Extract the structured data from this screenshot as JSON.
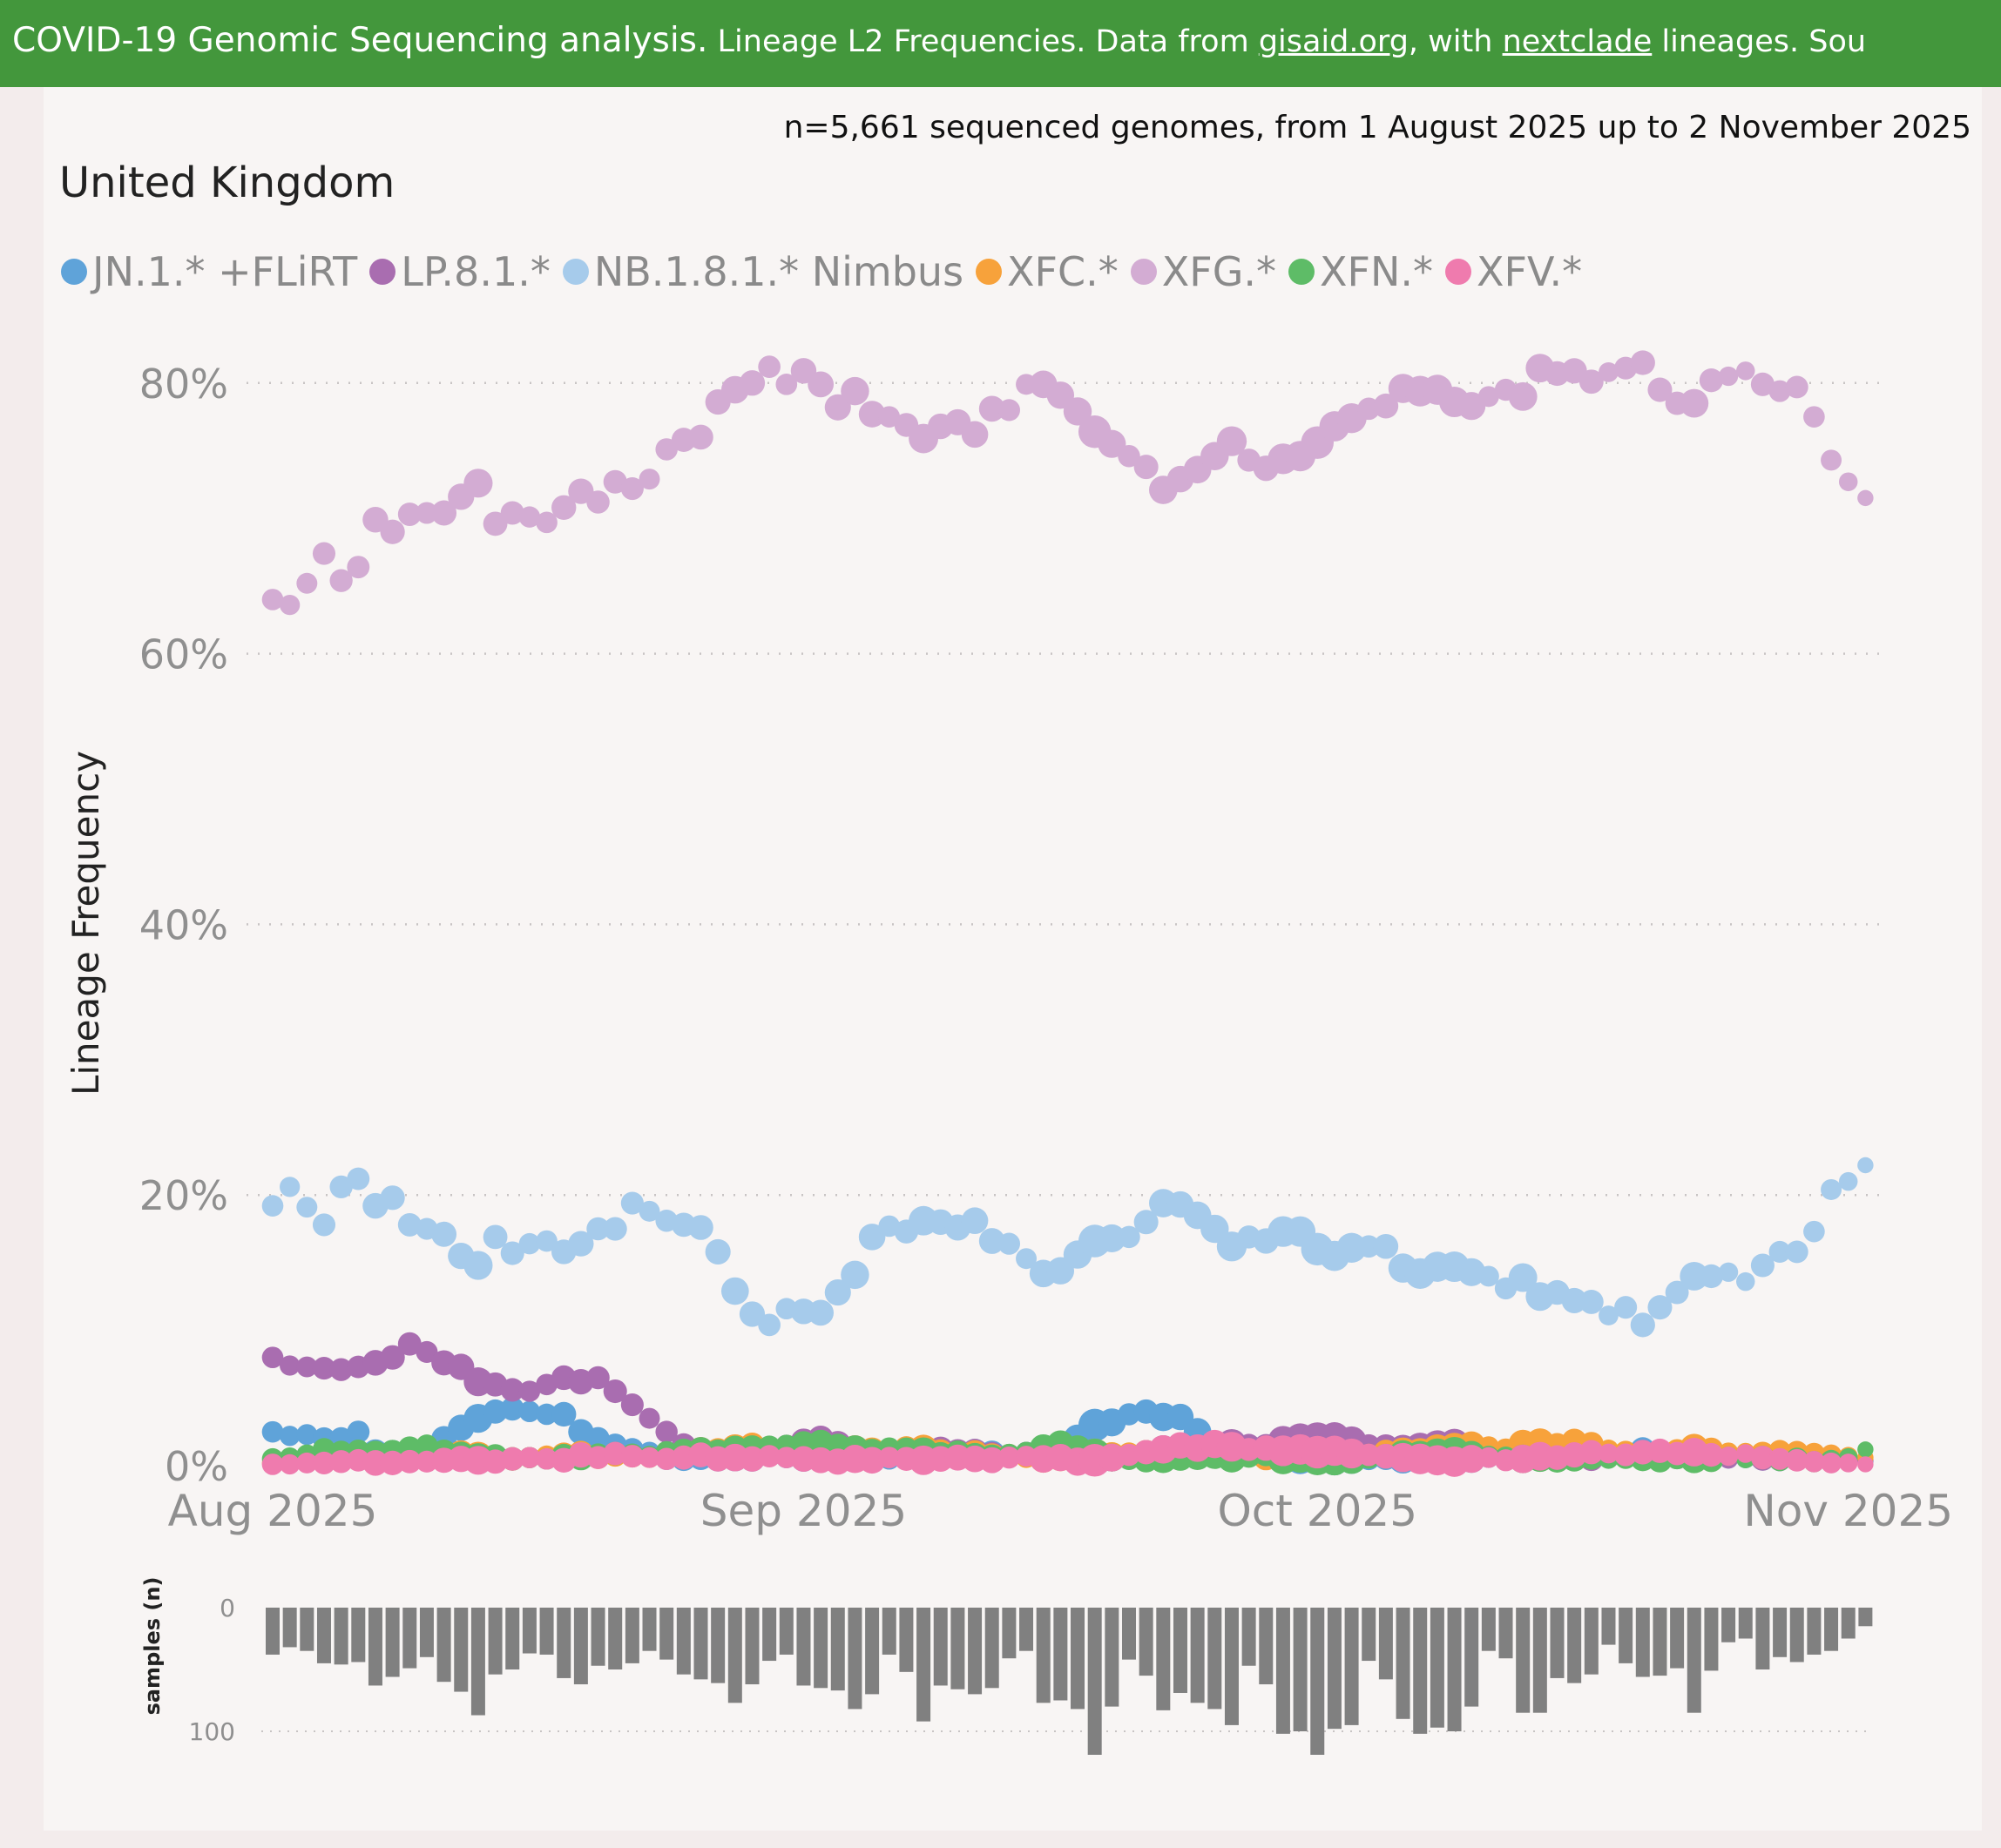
{
  "header": {
    "title": "COVID-19 Genomic Sequencing analysis.",
    "sub_a": " Lineage L2 Frequencies. Data from ",
    "link_gisaid": "gisaid.org",
    "sub_b": ", with ",
    "link_nextclade": "nextclade",
    "sub_c": " lineages. Sou"
  },
  "summary": "n=5,661 sequenced genomes, from 1 August 2025 up to 2 November 2025",
  "country": "United Kingdom",
  "chart_data": [
    {
      "type": "scatter",
      "title": "United Kingdom",
      "ylabel": "Lineage Frequency",
      "xlabel": "",
      "x_start": "2025-08-01",
      "x_end": "2025-11-02",
      "ylim": [
        0,
        80
      ],
      "yticks": [
        {
          "v": 0,
          "label": "0%"
        },
        {
          "v": 20,
          "label": "20%"
        },
        {
          "v": 40,
          "label": "40%"
        },
        {
          "v": 60,
          "label": "60%"
        },
        {
          "v": 80,
          "label": "80%"
        }
      ],
      "xticks": [
        {
          "day": 0,
          "label": "Aug 2025"
        },
        {
          "day": 31,
          "label": "Sep 2025"
        },
        {
          "day": 61,
          "label": "Oct 2025"
        },
        {
          "day": 92,
          "label": "Nov 2025"
        }
      ],
      "grid": true,
      "legend_position": "top-left",
      "series": [
        {
          "name": "JN.1.* +FLiRT",
          "color": "#5fa3d9",
          "values": [
            2.5,
            2.2,
            2.3,
            2.0,
            2.0,
            2.5,
            1.0,
            1.0,
            0.8,
            0.8,
            2.0,
            2.8,
            3.5,
            4.0,
            4.2,
            4.0,
            3.8,
            3.8,
            2.5,
            2.0,
            1.5,
            1.2,
            1.0,
            0.5,
            0.5,
            0.6,
            0.5,
            0.6,
            0.5,
            0.8,
            0.6,
            0.5,
            0.6,
            0.5,
            0.6,
            0.5,
            0.5,
            0.6,
            0.7,
            0.8,
            0.8,
            1.0,
            0.9,
            0.8,
            1.0,
            1.2,
            1.5,
            2.0,
            3.0,
            3.2,
            3.8,
            4.0,
            3.6,
            3.6,
            2.5,
            1.5,
            1.2,
            1.0,
            1.0,
            0.8,
            0.5,
            0.6,
            0.4,
            0.5,
            0.5,
            0.6,
            0.5,
            0.6,
            0.8,
            0.5,
            0.5,
            0.6,
            0.8,
            0.8,
            1.0,
            1.2,
            1.0,
            1.0,
            0.8,
            0.8,
            1.2,
            1.0,
            0.8,
            0.7,
            0.6,
            0.5,
            0.5,
            0.5,
            0.4,
            0.6,
            0.5,
            0.4,
            0.4,
            0.3
          ]
        },
        {
          "name": "LP.8.1.*",
          "color": "#a96db0",
          "values": [
            8.0,
            7.4,
            7.3,
            7.2,
            7.1,
            7.3,
            7.6,
            8.0,
            9.0,
            8.4,
            7.6,
            7.3,
            6.2,
            6.0,
            5.6,
            5.5,
            6.0,
            6.5,
            6.2,
            6.5,
            5.5,
            4.5,
            3.5,
            2.5,
            1.5,
            1.2,
            1.0,
            1.0,
            1.0,
            1.2,
            1.5,
            1.8,
            2.0,
            1.6,
            1.2,
            1.0,
            1.0,
            0.8,
            1.0,
            1.2,
            1.0,
            1.0,
            0.8,
            0.7,
            1.0,
            1.2,
            1.0,
            0.8,
            0.7,
            0.6,
            0.8,
            1.0,
            1.2,
            1.0,
            1.2,
            1.5,
            1.6,
            1.5,
            1.4,
            1.8,
            2.0,
            2.0,
            2.1,
            1.8,
            1.5,
            1.4,
            1.2,
            1.3,
            1.5,
            1.6,
            1.2,
            1.0,
            0.8,
            0.9,
            1.0,
            0.8,
            0.6,
            0.5,
            0.6,
            0.8,
            1.0,
            0.8,
            0.6,
            0.7,
            0.6,
            0.5,
            0.6,
            0.5,
            0.4,
            0.5,
            0.7,
            0.5,
            0.4,
            0.4
          ]
        },
        {
          "name": "NB.1.8.1.* Nimbus",
          "color": "#a6cbeb",
          "values": [
            19.2,
            20.6,
            19.1,
            17.8,
            20.6,
            21.2,
            19.2,
            19.8,
            17.8,
            17.5,
            17.1,
            15.5,
            14.8,
            16.9,
            15.7,
            16.4,
            16.6,
            15.8,
            16.4,
            17.5,
            17.5,
            19.4,
            18.8,
            18.1,
            17.8,
            17.6,
            15.8,
            12.9,
            11.2,
            10.4,
            11.6,
            11.4,
            11.3,
            12.8,
            14.1,
            16.9,
            17.7,
            17.3,
            18.1,
            18.0,
            17.6,
            18.1,
            16.6,
            16.4,
            15.3,
            14.2,
            14.4,
            15.6,
            16.6,
            16.8,
            16.9,
            18.0,
            19.4,
            19.3,
            18.5,
            17.5,
            16.2,
            16.9,
            16.6,
            17.3,
            17.3,
            16.0,
            15.5,
            16.1,
            16.2,
            16.2,
            14.6,
            14.2,
            14.7,
            14.7,
            14.3,
            14.0,
            13.1,
            13.9,
            12.5,
            12.8,
            12.2,
            12.1,
            11.1,
            11.7,
            10.4,
            11.7,
            12.8,
            14.0,
            14.0,
            14.3,
            13.6,
            14.8,
            15.8,
            15.8,
            17.3,
            20.4,
            21.0,
            22.2
          ]
        },
        {
          "name": "XFC.*",
          "color": "#f7a23b",
          "values": [
            0.2,
            0.3,
            0.3,
            0.4,
            0.5,
            0.6,
            0.5,
            0.4,
            0.5,
            0.7,
            0.8,
            0.9,
            0.7,
            0.5,
            0.5,
            0.6,
            0.7,
            0.8,
            0.9,
            0.6,
            0.8,
            0.7,
            0.6,
            0.9,
            1.0,
            1.2,
            1.1,
            1.3,
            1.5,
            1.2,
            1.0,
            1.1,
            1.2,
            1.0,
            1.2,
            1.1,
            1.0,
            1.3,
            1.2,
            1.0,
            0.8,
            0.9,
            0.7,
            0.8,
            0.6,
            0.5,
            0.6,
            0.5,
            0.8,
            0.7,
            0.9,
            1.0,
            1.1,
            1.2,
            1.1,
            0.9,
            0.8,
            1.0,
            0.6,
            0.7,
            0.8,
            0.9,
            0.6,
            0.7,
            0.8,
            1.0,
            1.0,
            0.9,
            1.2,
            1.3,
            1.5,
            1.4,
            1.2,
            1.6,
            1.7,
            1.5,
            1.8,
            1.6,
            1.2,
            1.0,
            0.9,
            1.0,
            1.1,
            1.3,
            1.2,
            1.0,
            1.0,
            0.9,
            1.1,
            1.0,
            0.9,
            0.8,
            0.7,
            0.6
          ]
        },
        {
          "name": "XFG.*",
          "color": "#d3acd3",
          "values": [
            64.0,
            63.6,
            65.2,
            67.4,
            65.4,
            66.4,
            69.9,
            69.0,
            70.3,
            70.4,
            70.4,
            71.6,
            72.6,
            69.6,
            70.4,
            70.1,
            69.7,
            70.8,
            72.0,
            71.2,
            72.7,
            72.2,
            72.9,
            75.1,
            75.8,
            76.0,
            78.6,
            79.5,
            80.0,
            81.2,
            79.9,
            80.9,
            79.9,
            78.2,
            79.4,
            77.7,
            77.5,
            76.9,
            75.9,
            76.8,
            77.1,
            76.2,
            78.1,
            78.0,
            79.9,
            79.9,
            79.1,
            77.9,
            76.4,
            75.5,
            74.6,
            73.8,
            72.1,
            72.9,
            73.6,
            74.6,
            75.7,
            74.3,
            73.7,
            74.4,
            74.6,
            75.6,
            76.8,
            77.4,
            78.1,
            78.3,
            79.6,
            79.4,
            79.5,
            78.6,
            78.3,
            79.0,
            79.5,
            79.0,
            81.1,
            80.7,
            80.9,
            80.1,
            80.8,
            81.1,
            81.5,
            79.5,
            78.5,
            78.5,
            80.2,
            80.5,
            80.9,
            79.9,
            79.4,
            79.7,
            77.5,
            74.3,
            72.7,
            71.5
          ]
        },
        {
          "name": "XFN.*",
          "color": "#5ebc67",
          "values": [
            0.5,
            0.6,
            0.8,
            1.2,
            1.0,
            1.1,
            0.9,
            1.0,
            1.3,
            1.5,
            1.0,
            0.8,
            0.6,
            0.7,
            0.5,
            0.6,
            0.5,
            0.7,
            0.6,
            0.8,
            0.9,
            0.8,
            0.7,
            1.0,
            1.1,
            1.2,
            1.0,
            1.2,
            1.3,
            1.4,
            1.5,
            1.6,
            1.7,
            1.4,
            1.2,
            1.0,
            1.3,
            1.2,
            1.0,
            0.8,
            0.9,
            0.7,
            0.6,
            0.8,
            1.0,
            1.3,
            1.6,
            1.2,
            0.8,
            0.6,
            0.5,
            0.4,
            0.5,
            0.6,
            0.7,
            0.8,
            0.6,
            0.7,
            0.9,
            0.5,
            0.6,
            0.5,
            0.4,
            0.5,
            0.6,
            0.7,
            0.8,
            0.7,
            0.9,
            1.0,
            0.8,
            0.7,
            0.6,
            0.5,
            0.6,
            0.4,
            0.5,
            0.6,
            0.5,
            0.6,
            0.5,
            0.4,
            0.6,
            0.5,
            0.4,
            0.7,
            0.5,
            0.6,
            0.4,
            0.5,
            0.3,
            0.4,
            0.6,
            1.2
          ]
        },
        {
          "name": "XFV.*",
          "color": "#ef7bae",
          "values": [
            0.1,
            0.1,
            0.2,
            0.2,
            0.3,
            0.4,
            0.2,
            0.2,
            0.3,
            0.3,
            0.4,
            0.5,
            0.4,
            0.3,
            0.5,
            0.6,
            0.5,
            0.4,
            0.8,
            0.6,
            0.9,
            0.7,
            0.6,
            0.5,
            0.6,
            0.8,
            0.5,
            0.6,
            0.5,
            0.7,
            0.6,
            0.5,
            0.4,
            0.3,
            0.5,
            0.4,
            0.6,
            0.5,
            0.4,
            0.5,
            0.6,
            0.5,
            0.4,
            0.6,
            0.7,
            0.5,
            0.6,
            0.3,
            0.4,
            0.6,
            0.8,
            1.0,
            1.2,
            1.5,
            1.3,
            1.6,
            1.4,
            1.2,
            1.3,
            1.1,
            1.2,
            1.0,
            1.1,
            0.9,
            0.8,
            0.7,
            0.6,
            0.5,
            0.4,
            0.3,
            0.5,
            0.6,
            0.4,
            0.5,
            0.7,
            0.6,
            0.8,
            1.0,
            0.9,
            0.8,
            1.0,
            1.1,
            0.9,
            1.0,
            0.8,
            0.7,
            0.9,
            0.6,
            0.5,
            0.4,
            0.3,
            0.2,
            0.2,
            0.1
          ]
        }
      ]
    },
    {
      "type": "bar",
      "ylabel": "samples (n)",
      "ylim": [
        0,
        120
      ],
      "inverted": true,
      "yticks": [
        {
          "v": 0,
          "label": "0"
        },
        {
          "v": 100,
          "label": "100"
        }
      ],
      "values": [
        38,
        32,
        35,
        45,
        46,
        44,
        63,
        56,
        49,
        40,
        60,
        68,
        87,
        54,
        50,
        37,
        38,
        57,
        62,
        47,
        50,
        45,
        35,
        42,
        54,
        58,
        61,
        77,
        62,
        43,
        38,
        63,
        65,
        67,
        82,
        70,
        38,
        52,
        92,
        63,
        66,
        70,
        65,
        41,
        35,
        77,
        75,
        82,
        119,
        80,
        42,
        55,
        83,
        69,
        77,
        82,
        95,
        47,
        62,
        102,
        100,
        119,
        98,
        95,
        43,
        58,
        90,
        102,
        97,
        100,
        80,
        35,
        41,
        85,
        85,
        57,
        61,
        54,
        30,
        45,
        56,
        55,
        49,
        85,
        51,
        28,
        25,
        50,
        40,
        44,
        38,
        35,
        25,
        15
      ]
    }
  ]
}
